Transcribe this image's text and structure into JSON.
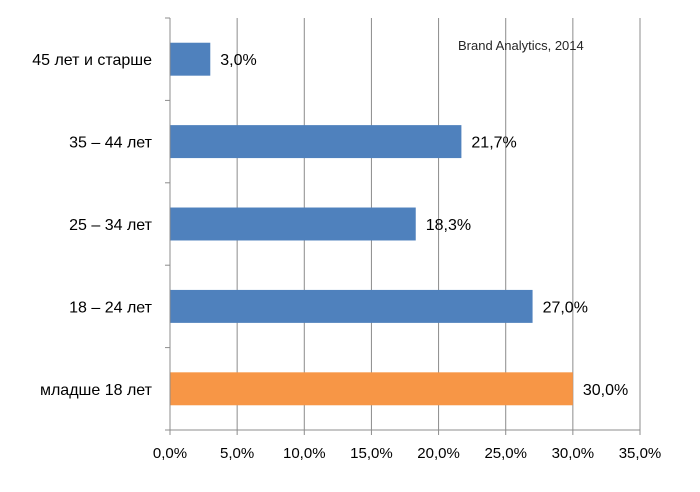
{
  "chart_data": {
    "type": "bar",
    "orientation": "horizontal",
    "annotation": "Brand Analytics, 2014",
    "categories": [
      "45 лет и старше",
      "35 – 44 лет",
      "25 – 34 лет",
      "18 – 24 лет",
      "младше 18 лет"
    ],
    "values": [
      3.0,
      21.7,
      18.3,
      27.0,
      30.0
    ],
    "data_labels": [
      "3,0%",
      "21,7%",
      "18,3%",
      "27,0%",
      "30,0%"
    ],
    "bar_colors": [
      "#4f81bd",
      "#4f81bd",
      "#4f81bd",
      "#4f81bd",
      "#f79646"
    ],
    "xlim": [
      0,
      35
    ],
    "x_ticks": [
      0,
      5,
      10,
      15,
      20,
      25,
      30,
      35
    ],
    "x_tick_labels": [
      "0,0%",
      "5,0%",
      "10,0%",
      "15,0%",
      "20,0%",
      "25,0%",
      "30,0%",
      "35,0%"
    ],
    "grid": true,
    "legend": "none"
  }
}
